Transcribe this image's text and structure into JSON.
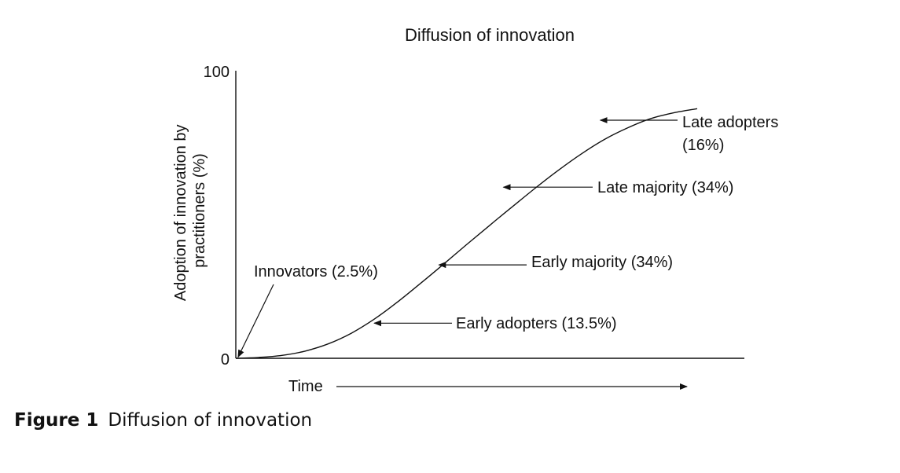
{
  "chart_data": {
    "type": "line",
    "title": "Diffusion of innovation",
    "xlabel": "Time",
    "ylabel_lines": [
      "Adoption of innovation by",
      "practitioners (%)"
    ],
    "ylim": [
      0,
      100
    ],
    "y_ticks": [
      "0",
      "100"
    ],
    "grid": false,
    "series": [
      {
        "x": [
          0,
          0.5,
          1,
          1.5,
          2,
          2.5,
          3,
          3.5,
          4,
          4.5,
          5,
          5.5,
          6,
          6.5,
          7,
          7.5,
          8,
          8.5,
          9,
          9.5,
          10
        ],
        "values": [
          0,
          0.3,
          1,
          2.5,
          5,
          8.7,
          13.6,
          19.5,
          26,
          32.7,
          39.5,
          46.2,
          52.8,
          59.3,
          65.5,
          71.2,
          76.2,
          80.2,
          83.4,
          85.4,
          86.8
        ]
      }
    ],
    "annotations": [
      {
        "lines": [
          "Innovators (2.5%)"
        ],
        "x": 0.05,
        "y": 0.4
      },
      {
        "lines": [
          "Early adopters (13.5%)"
        ],
        "x": 3.0,
        "y": 12.2
      },
      {
        "lines": [
          "Early majority (34%)"
        ],
        "x": 4.4,
        "y": 32.5
      },
      {
        "lines": [
          "Late majority (34%)"
        ],
        "x": 5.8,
        "y": 59.5
      },
      {
        "lines": [
          "Late adopters",
          "(16%)"
        ],
        "x": 7.9,
        "y": 82.8
      }
    ]
  },
  "figure_caption": {
    "label": "Figure 1",
    "text": "Diffusion of innovation"
  }
}
